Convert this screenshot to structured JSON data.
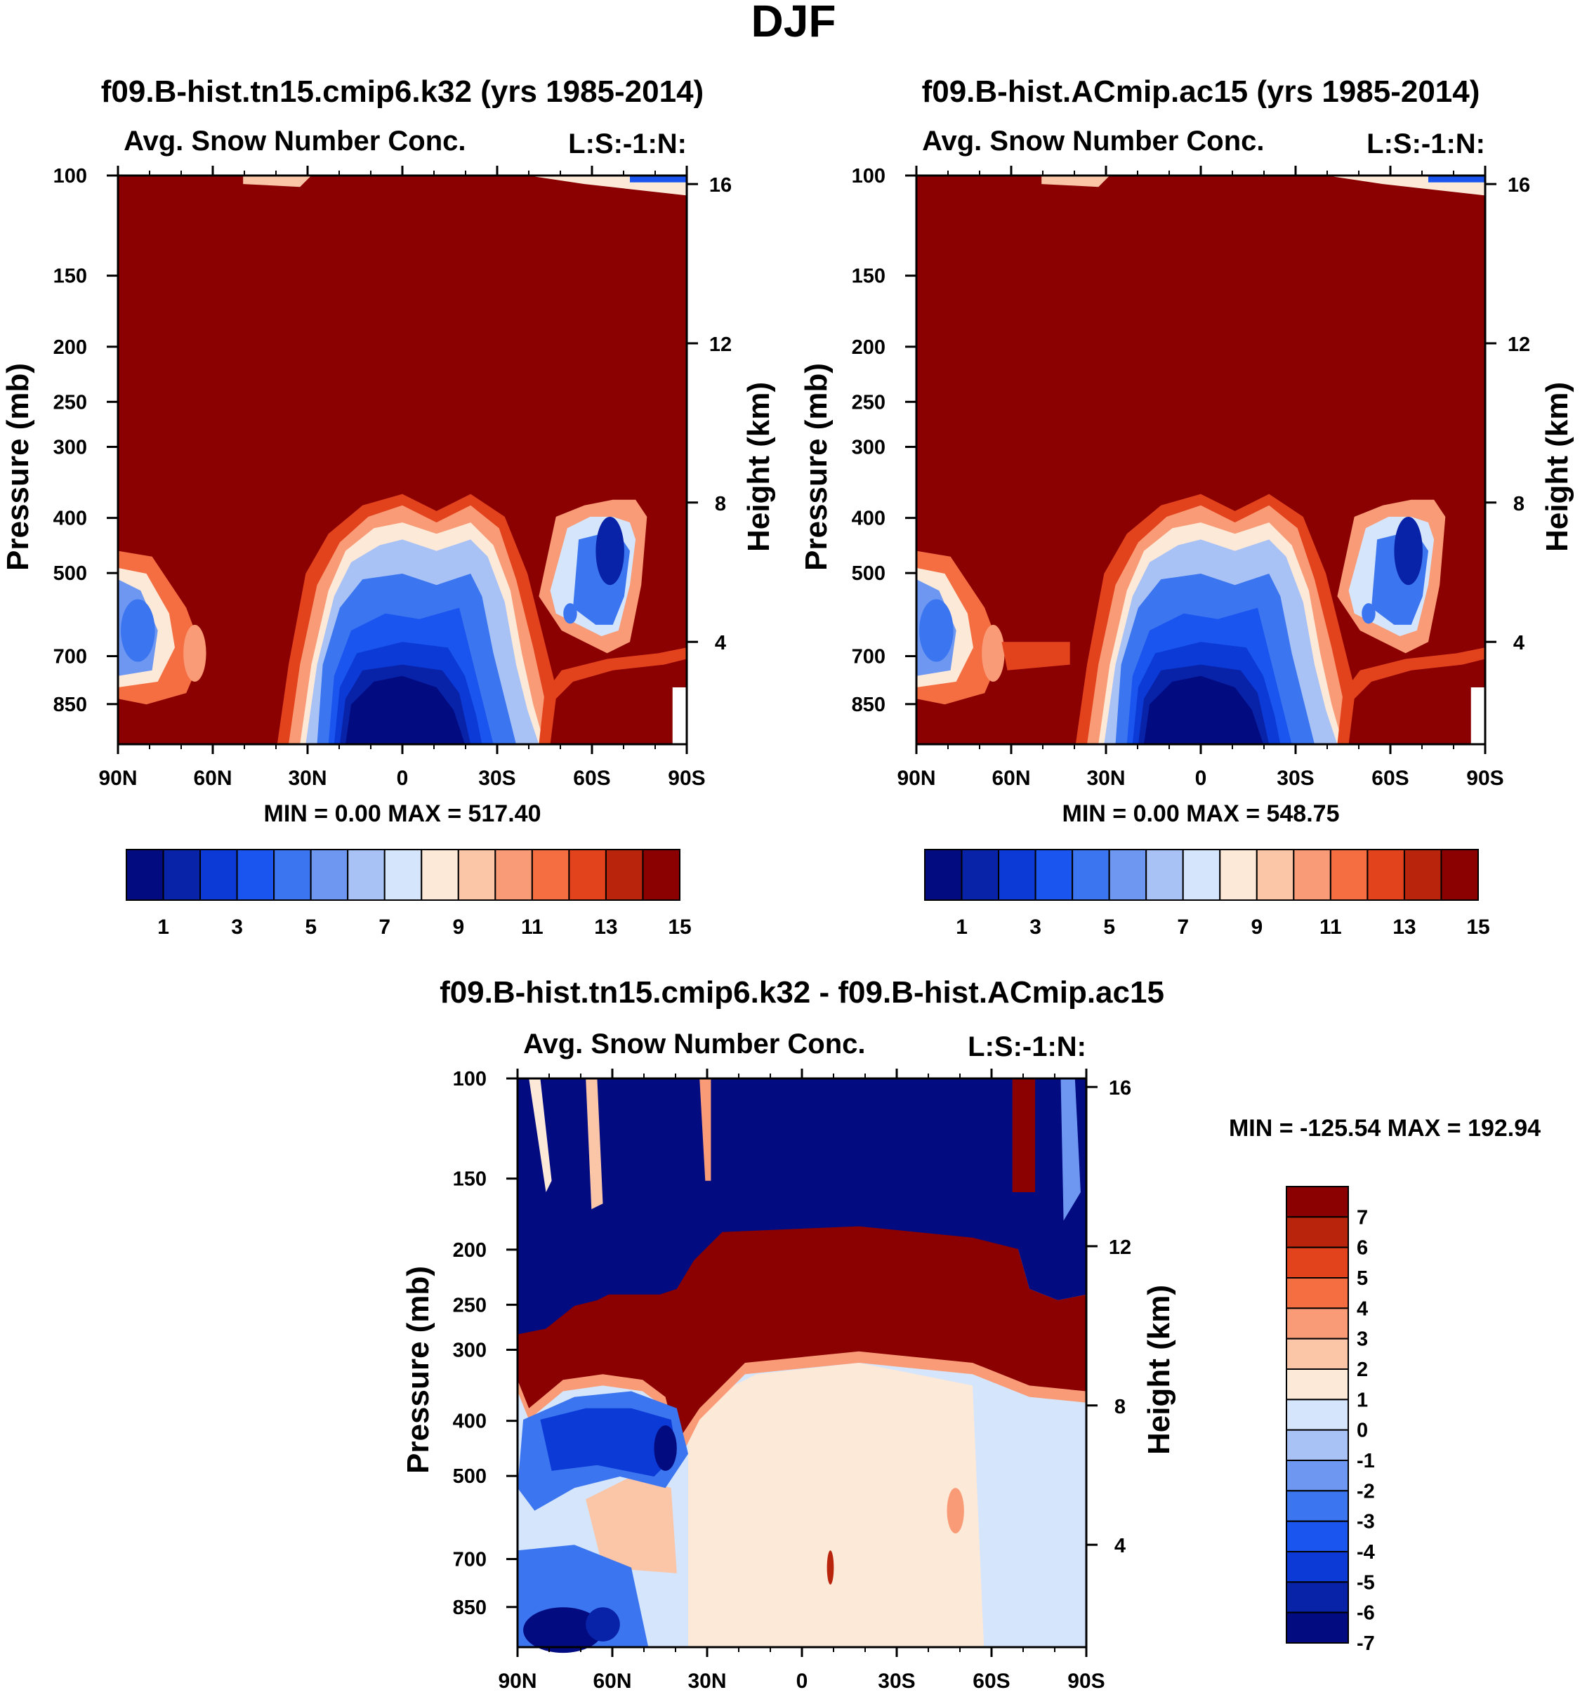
{
  "title": "DJF",
  "colors": {
    "abs_levels": [
      "#020b80",
      "#0822a8",
      "#0c3ad6",
      "#1a55ef",
      "#3b75f0",
      "#6e97f2",
      "#a9c2f6",
      "#d5e5fb",
      "#fde9d8",
      "#fbc5a7",
      "#f99b76",
      "#f56e42",
      "#e2431d",
      "#b9240d",
      "#8b0000"
    ],
    "diff_levels": [
      "#020b80",
      "#0822a8",
      "#0c3ad6",
      "#1a55ef",
      "#3b75f0",
      "#6e97f2",
      "#a9c2f6",
      "#d5e5fb",
      "#fde9d8",
      "#fbc5a7",
      "#f99b76",
      "#f56e42",
      "#e2431d",
      "#b9240d",
      "#8b0000"
    ]
  },
  "chart_data": [
    {
      "type": "contour",
      "title": "f09.B-hist.tn15.cmip6.k32 (yrs 1985-2014)",
      "left_label": "Avg. Snow Number Conc.",
      "right_label": "L:S:-1:N:",
      "ylabel": "Pressure (mb)",
      "ylabel_right": "Height (km)",
      "x_ticks": [
        "90N",
        "60N",
        "30N",
        "0",
        "30S",
        "60S",
        "90S"
      ],
      "y_ticks": [
        "100",
        "150",
        "200",
        "250",
        "300",
        "400",
        "500",
        "700",
        "850"
      ],
      "y_ticks_right": [
        "16",
        "12",
        "8",
        "4"
      ],
      "stats": {
        "min_label": "MIN =",
        "min": "0.00",
        "max_label": "MAX =",
        "max": "517.40"
      },
      "colorbar_labels": [
        "1",
        "3",
        "5",
        "7",
        "9",
        "11",
        "13",
        "15"
      ],
      "ylim": [
        100,
        1000
      ],
      "x_range": [
        "90N",
        "90S"
      ]
    },
    {
      "type": "contour",
      "title": "f09.B-hist.ACmip.ac15 (yrs 1985-2014)",
      "left_label": "Avg. Snow Number Conc.",
      "right_label": "L:S:-1:N:",
      "ylabel": "Pressure (mb)",
      "ylabel_right": "Height (km)",
      "x_ticks": [
        "90N",
        "60N",
        "30N",
        "0",
        "30S",
        "60S",
        "90S"
      ],
      "y_ticks": [
        "100",
        "150",
        "200",
        "250",
        "300",
        "400",
        "500",
        "700",
        "850"
      ],
      "y_ticks_right": [
        "16",
        "12",
        "8",
        "4"
      ],
      "stats": {
        "min_label": "MIN =",
        "min": "0.00",
        "max_label": "MAX =",
        "max": "548.75"
      },
      "colorbar_labels": [
        "1",
        "3",
        "5",
        "7",
        "9",
        "11",
        "13",
        "15"
      ],
      "ylim": [
        100,
        1000
      ],
      "x_range": [
        "90N",
        "90S"
      ]
    },
    {
      "type": "contour",
      "title": "f09.B-hist.tn15.cmip6.k32 - f09.B-hist.ACmip.ac15",
      "left_label": "Avg. Snow Number Conc.",
      "right_label": "L:S:-1:N:",
      "ylabel": "Pressure (mb)",
      "ylabel_right": "Height (km)",
      "x_ticks": [
        "90N",
        "60N",
        "30N",
        "0",
        "30S",
        "60S",
        "90S"
      ],
      "y_ticks": [
        "100",
        "150",
        "200",
        "250",
        "300",
        "400",
        "500",
        "700",
        "850"
      ],
      "y_ticks_right": [
        "16",
        "12",
        "8",
        "4"
      ],
      "stats": {
        "min_label": "MIN =",
        "min": "-125.54",
        "max_label": "MAX =",
        "max": "192.94"
      },
      "colorbar_labels": [
        "7",
        "6",
        "5",
        "4",
        "3",
        "2",
        "1",
        "0",
        "-1",
        "-2",
        "-3",
        "-4",
        "-5",
        "-6",
        "-7"
      ],
      "ylim": [
        100,
        1000
      ],
      "x_range": [
        "90N",
        "90S"
      ]
    }
  ]
}
